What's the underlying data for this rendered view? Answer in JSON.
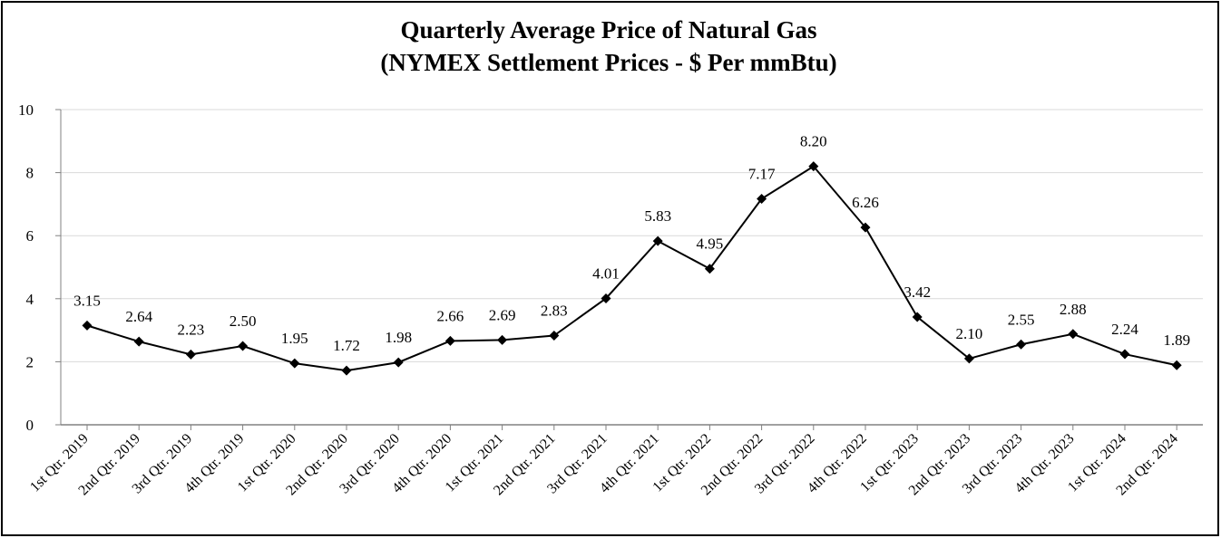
{
  "chart_data": {
    "type": "line",
    "title": "Quarterly Average Price of Natural Gas",
    "subtitle": "(NYMEX Settlement Prices - $ Per mmBtu)",
    "xlabel": "",
    "ylabel": "",
    "ylim": [
      0,
      10
    ],
    "yticks": [
      0,
      2,
      4,
      6,
      8,
      10
    ],
    "grid": true,
    "legend": "none",
    "categories": [
      "1st Qtr. 2019",
      "2nd Qtr. 2019",
      "3rd Qtr. 2019",
      "4th Qtr. 2019",
      "1st Qtr. 2020",
      "2nd Qtr. 2020",
      "3rd Qtr. 2020",
      "4th Qtr. 2020",
      "1st Qtr. 2021",
      "2nd Qtr. 2021",
      "3rd Qtr. 2021",
      "4th Qtr. 2021",
      "1st Qtr. 2022",
      "2nd Qtr. 2022",
      "3rd Qtr. 2022",
      "4th Qtr. 2022",
      "1st Qtr. 2023",
      "2nd Qtr. 2023",
      "3rd Qtr. 2023",
      "4th Qtr. 2023",
      "1st Qtr. 2024",
      "2nd Qtr. 2024"
    ],
    "series": [
      {
        "name": "NYMEX Settlement Price",
        "color": "#000000",
        "marker": "diamond",
        "values": [
          3.15,
          2.64,
          2.23,
          2.5,
          1.95,
          1.72,
          1.98,
          2.66,
          2.69,
          2.83,
          4.01,
          5.83,
          4.95,
          7.17,
          8.2,
          6.26,
          3.42,
          2.1,
          2.55,
          2.88,
          2.24,
          1.89
        ],
        "labels": [
          "3.15",
          "2.64",
          "2.23",
          "2.50",
          "1.95",
          "1.72",
          "1.98",
          "2.66",
          "2.69",
          "2.83",
          "4.01",
          "5.83",
          "4.95",
          "7.17",
          "8.20",
          "6.26",
          "3.42",
          "2.10",
          "2.55",
          "2.88",
          "2.24",
          "1.89"
        ]
      }
    ]
  }
}
